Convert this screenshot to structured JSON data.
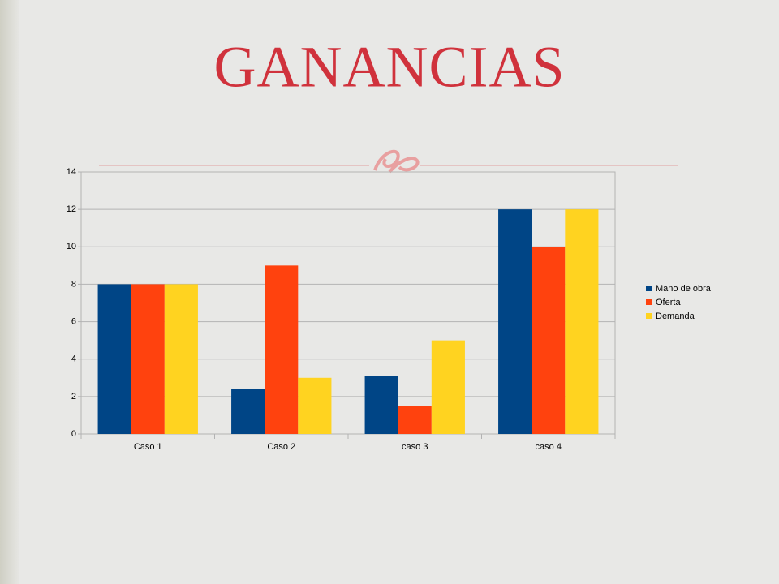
{
  "chart_data": {
    "type": "bar",
    "title": "GANANCIAS",
    "categories": [
      "Caso 1",
      "Caso 2",
      "caso 3",
      "caso 4"
    ],
    "series": [
      {
        "name": "Mano de obra",
        "color": "#004586",
        "values": [
          8,
          2.4,
          3.1,
          12
        ]
      },
      {
        "name": "Oferta",
        "color": "#ff420e",
        "values": [
          8,
          9,
          1.5,
          10
        ]
      },
      {
        "name": "Demanda",
        "color": "#ffd320",
        "values": [
          8,
          3,
          5,
          12
        ]
      }
    ],
    "ylim": [
      0,
      14
    ],
    "yticks": [
      0,
      2,
      4,
      6,
      8,
      10,
      12,
      14
    ],
    "grid": true,
    "legend": "right"
  }
}
